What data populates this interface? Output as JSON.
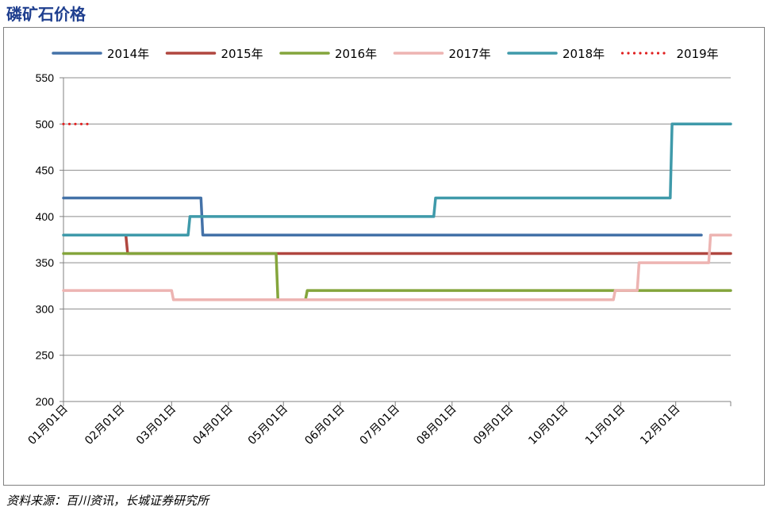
{
  "title": "磷矿石价格",
  "source": "资料来源：百川资讯，长城证券研究所",
  "chart_data": {
    "type": "line",
    "title": "磷矿石价格",
    "xlabel": "",
    "ylabel": "",
    "ylim": [
      200,
      550
    ],
    "yticks": [
      "200",
      "250",
      "300",
      "350",
      "400",
      "450",
      "500",
      "550"
    ],
    "xticks": [
      "01月01日",
      "02月01日",
      "03月01日",
      "04月01日",
      "05月01日",
      "06月01日",
      "07月01日",
      "08月01日",
      "09月01日",
      "10月01日",
      "11月01日",
      "12月01日"
    ],
    "xdomain": [
      "01-01",
      "12-31"
    ],
    "grid": "horizontal",
    "legend_position": "top",
    "series": [
      {
        "name": "2014年",
        "color": "#4472a8",
        "style": "solid",
        "points": [
          [
            "01-01",
            420
          ],
          [
            "03-17",
            420
          ],
          [
            "03-18",
            380
          ],
          [
            "12-15",
            380
          ]
        ]
      },
      {
        "name": "2015年",
        "color": "#b0463f",
        "style": "solid",
        "points": [
          [
            "02-04",
            380
          ],
          [
            "02-05",
            360
          ],
          [
            "12-31",
            360
          ]
        ]
      },
      {
        "name": "2016年",
        "color": "#84a53c",
        "style": "solid",
        "points": [
          [
            "01-01",
            360
          ],
          [
            "04-27",
            360
          ],
          [
            "04-28",
            310
          ],
          [
            "05-13",
            310
          ],
          [
            "05-14",
            320
          ],
          [
            "12-31",
            320
          ]
        ]
      },
      {
        "name": "2017年",
        "color": "#edb4b2",
        "style": "solid",
        "points": [
          [
            "01-01",
            320
          ],
          [
            "03-01",
            320
          ],
          [
            "03-02",
            310
          ],
          [
            "10-28",
            310
          ],
          [
            "10-29",
            320
          ],
          [
            "11-10",
            320
          ],
          [
            "11-11",
            350
          ],
          [
            "12-19",
            350
          ],
          [
            "12-20",
            380
          ],
          [
            "12-31",
            380
          ]
        ]
      },
      {
        "name": "2018年",
        "color": "#3f9aaa",
        "style": "solid",
        "points": [
          [
            "01-01",
            380
          ],
          [
            "03-10",
            380
          ],
          [
            "03-11",
            400
          ],
          [
            "07-22",
            400
          ],
          [
            "07-23",
            420
          ],
          [
            "11-28",
            420
          ],
          [
            "11-29",
            500
          ],
          [
            "12-31",
            500
          ]
        ]
      },
      {
        "name": "2019年",
        "color": "#e02020",
        "style": "dotted",
        "points": [
          [
            "01-01",
            500
          ],
          [
            "01-15",
            500
          ]
        ]
      }
    ]
  }
}
